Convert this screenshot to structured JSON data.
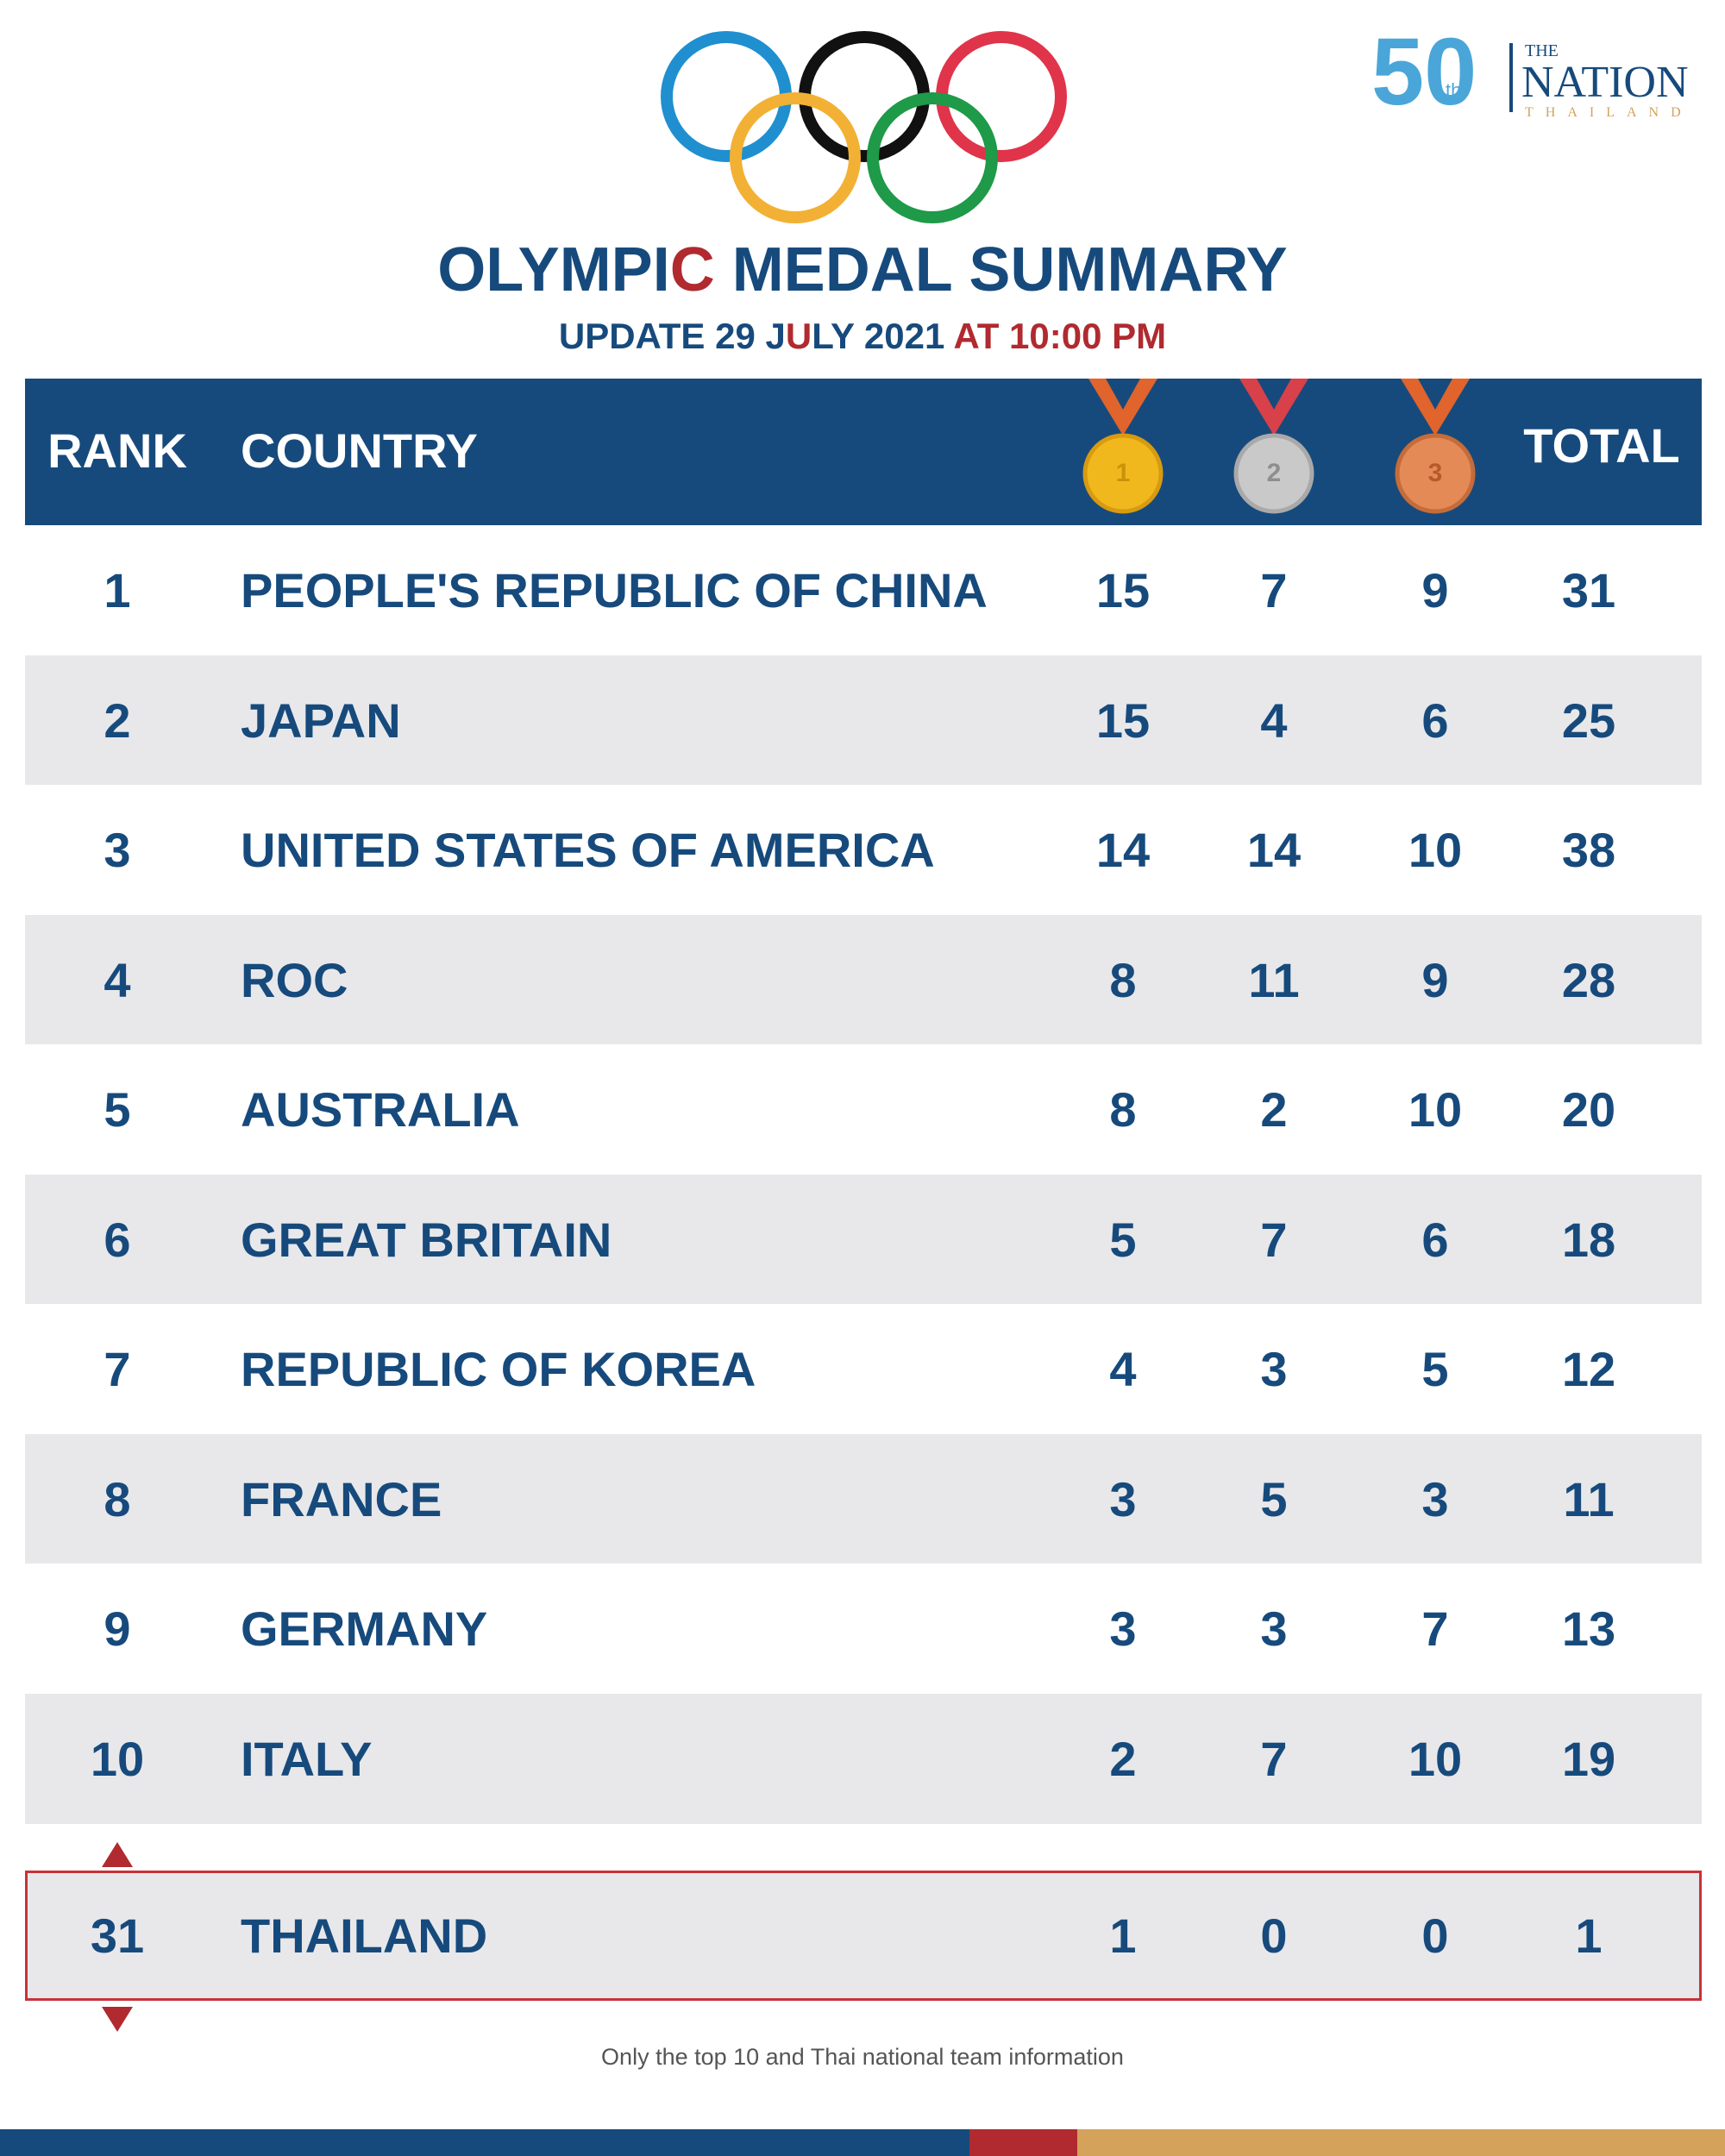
{
  "header": {
    "title": "OLYMPIC MEDAL SUMMARY",
    "subtitle": "UPDATE 29 JULY 2021 AT 10:00 PM"
  },
  "logo": {
    "anniversary": "50",
    "suffix": "th",
    "the": "THE",
    "name": "NATION",
    "country": "THAILAND"
  },
  "table": {
    "columns": [
      "RANK",
      "COUNTRY",
      "TOTAL"
    ],
    "medals": [
      "1",
      "2",
      "3"
    ],
    "rows": [
      [
        "1",
        "PEOPLE'S REPUBLIC OF CHINA",
        "15",
        "7",
        "9",
        "31"
      ],
      [
        "2",
        "JAPAN",
        "15",
        "4",
        "6",
        "25"
      ],
      [
        "3",
        "UNITED STATES OF AMERICA",
        "14",
        "14",
        "10",
        "38"
      ],
      [
        "4",
        "ROC",
        "8",
        "11",
        "9",
        "28"
      ],
      [
        "5",
        "AUSTRALIA",
        "8",
        "2",
        "10",
        "20"
      ],
      [
        "6",
        "GREAT BRITAIN",
        "5",
        "7",
        "6",
        "18"
      ],
      [
        "7",
        "REPUBLIC OF KOREA",
        "4",
        "3",
        "5",
        "12"
      ],
      [
        "8",
        "FRANCE",
        "3",
        "5",
        "3",
        "11"
      ],
      [
        "9",
        "GERMANY",
        "3",
        "3",
        "7",
        "13"
      ],
      [
        "10",
        "ITALY",
        "2",
        "7",
        "10",
        "19"
      ]
    ],
    "highlight": [
      "31",
      "THAILAND",
      "1",
      "0",
      "0",
      "1"
    ]
  },
  "footnote": "Only the top 10 and Thai national team information"
}
